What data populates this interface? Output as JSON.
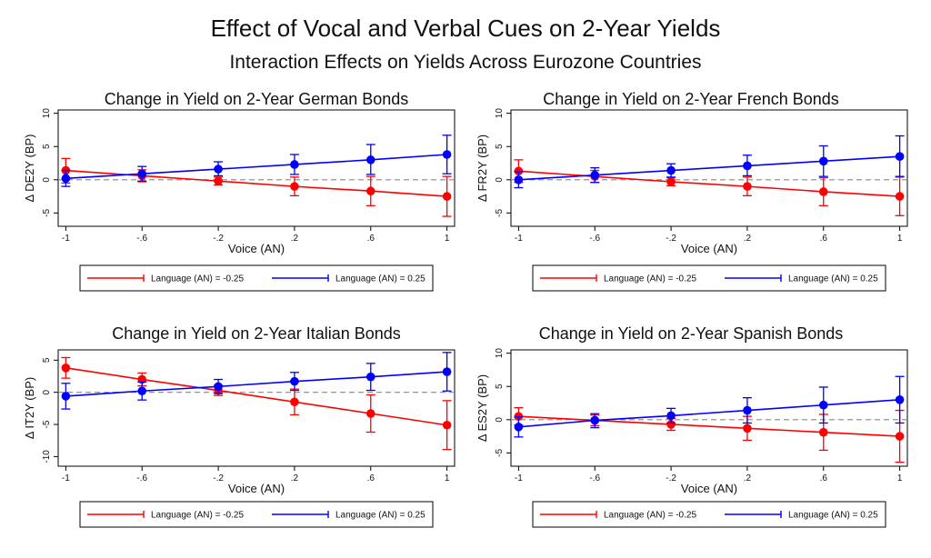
{
  "figure": {
    "title": "Effect of Vocal and Verbal Cues on 2-Year Yields",
    "subtitle": "Interaction Effects on Yields Across Eurozone Countries"
  },
  "colors": {
    "negative": "#ff0000",
    "positive": "#0000ff",
    "reference": "#888888",
    "frame": "#000000"
  },
  "chart_data": [
    {
      "type": "line",
      "title": "Change in Yield on 2-Year German Bonds",
      "xlabel": "Voice (AN)",
      "ylabel": "Δ DE2Y (BP)",
      "x": [
        -1,
        -0.6,
        -0.2,
        0.2,
        0.6,
        1
      ],
      "x_tick_labels": [
        "-1",
        "-.6",
        "-.2",
        ".2",
        ".6",
        "1"
      ],
      "y_ticks": [
        10,
        5,
        0,
        -5
      ],
      "y_tick_labels": [
        "10",
        "5",
        "0",
        "-5"
      ],
      "xlim": [
        -1.04,
        1.04
      ],
      "ylim": [
        -7,
        10.5
      ],
      "reference_line": 0,
      "legend_position": "bottom",
      "series": [
        {
          "name": "Language (AN) = -0.25",
          "color": "#ff0000",
          "values": [
            1.4,
            0.6,
            -0.2,
            -1.0,
            -1.7,
            -2.5
          ],
          "ci_low": [
            -0.5,
            -0.3,
            -0.8,
            -2.4,
            -3.9,
            -5.5
          ],
          "ci_high": [
            3.2,
            1.5,
            0.4,
            0.4,
            0.5,
            0.5
          ]
        },
        {
          "name": "Language (AN) = 0.25",
          "color": "#0000ff",
          "values": [
            0.2,
            0.9,
            1.6,
            2.3,
            3.0,
            3.8
          ],
          "ci_low": [
            -1.0,
            -0.2,
            0.6,
            0.8,
            0.8,
            0.9
          ],
          "ci_high": [
            1.4,
            2.0,
            2.7,
            3.8,
            5.3,
            6.7
          ]
        }
      ]
    },
    {
      "type": "line",
      "title": "Change in Yield on 2-Year French Bonds",
      "xlabel": "Voice (AN)",
      "ylabel": "Δ FR2Y (BP)",
      "x": [
        -1,
        -0.6,
        -0.2,
        0.2,
        0.6,
        1
      ],
      "x_tick_labels": [
        "-1",
        "-.6",
        "-.2",
        ".2",
        ".6",
        "1"
      ],
      "y_ticks": [
        10,
        5,
        0,
        -5
      ],
      "y_tick_labels": [
        "10",
        "5",
        "0",
        "-5"
      ],
      "xlim": [
        -1.04,
        1.04
      ],
      "ylim": [
        -7,
        10.5
      ],
      "reference_line": 0,
      "legend_position": "bottom",
      "series": [
        {
          "name": "Language (AN) = -0.25",
          "color": "#ff0000",
          "values": [
            1.3,
            0.5,
            -0.3,
            -1.0,
            -1.8,
            -2.5
          ],
          "ci_low": [
            -0.4,
            -0.4,
            -0.9,
            -2.4,
            -3.9,
            -5.4
          ],
          "ci_high": [
            3.0,
            1.4,
            0.3,
            0.4,
            0.3,
            0.4
          ]
        },
        {
          "name": "Language (AN) = 0.25",
          "color": "#0000ff",
          "values": [
            0.0,
            0.7,
            1.4,
            2.1,
            2.8,
            3.5
          ],
          "ci_low": [
            -1.2,
            -0.4,
            0.4,
            0.6,
            0.5,
            0.5
          ],
          "ci_high": [
            1.2,
            1.8,
            2.4,
            3.7,
            5.1,
            6.6
          ]
        }
      ]
    },
    {
      "type": "line",
      "title": "Change in Yield on 2-Year Italian Bonds",
      "xlabel": "Voice (AN)",
      "ylabel": "Δ IT2Y (BP)",
      "x": [
        -1,
        -0.6,
        -0.2,
        0.2,
        0.6,
        1
      ],
      "x_tick_labels": [
        "-1",
        "-.6",
        "-.2",
        ".2",
        ".6",
        "1"
      ],
      "y_ticks": [
        5,
        0,
        -5,
        -10
      ],
      "y_tick_labels": [
        "5",
        "0",
        "-5",
        "-10"
      ],
      "xlim": [
        -1.04,
        1.04
      ],
      "ylim": [
        -11.5,
        6.6
      ],
      "reference_line": 0,
      "legend_position": "bottom",
      "series": [
        {
          "name": "Language (AN) = -0.25",
          "color": "#ff0000",
          "values": [
            3.8,
            2.0,
            0.3,
            -1.5,
            -3.3,
            -5.1
          ],
          "ci_low": [
            2.2,
            1.0,
            -0.5,
            -3.5,
            -6.2,
            -8.9
          ],
          "ci_high": [
            5.4,
            3.0,
            1.1,
            0.5,
            -0.4,
            -1.3
          ]
        },
        {
          "name": "Language (AN) = 0.25",
          "color": "#0000ff",
          "values": [
            -0.6,
            0.2,
            0.9,
            1.7,
            2.4,
            3.2
          ],
          "ci_low": [
            -2.6,
            -1.2,
            -0.2,
            0.3,
            0.3,
            0.2
          ],
          "ci_high": [
            1.4,
            1.6,
            2.0,
            3.1,
            4.5,
            6.2
          ]
        }
      ]
    },
    {
      "type": "line",
      "title": "Change in Yield on 2-Year Spanish Bonds",
      "xlabel": "Voice (AN)",
      "ylabel": "Δ ES2Y (BP)",
      "x": [
        -1,
        -0.6,
        -0.2,
        0.2,
        0.6,
        1
      ],
      "x_tick_labels": [
        "-1",
        "-.6",
        "-.2",
        ".2",
        ".6",
        "1"
      ],
      "y_ticks": [
        10,
        5,
        0,
        -5
      ],
      "y_tick_labels": [
        "10",
        "5",
        "0",
        "-5"
      ],
      "xlim": [
        -1.04,
        1.04
      ],
      "ylim": [
        -7,
        10.5
      ],
      "reference_line": 0,
      "legend_position": "bottom",
      "series": [
        {
          "name": "Language (AN) = -0.25",
          "color": "#ff0000",
          "values": [
            0.5,
            -0.1,
            -0.7,
            -1.3,
            -1.9,
            -2.5
          ],
          "ci_low": [
            -0.8,
            -0.9,
            -1.6,
            -3.1,
            -4.6,
            -6.4
          ],
          "ci_high": [
            1.8,
            0.7,
            0.2,
            0.5,
            0.8,
            1.4
          ]
        },
        {
          "name": "Language (AN) = 0.25",
          "color": "#0000ff",
          "values": [
            -1.1,
            -0.1,
            0.6,
            1.4,
            2.2,
            3.0
          ],
          "ci_low": [
            -2.6,
            -1.2,
            -0.5,
            -0.5,
            -0.5,
            -0.5
          ],
          "ci_high": [
            0.4,
            0.9,
            1.7,
            3.3,
            4.9,
            6.5
          ]
        }
      ]
    }
  ]
}
